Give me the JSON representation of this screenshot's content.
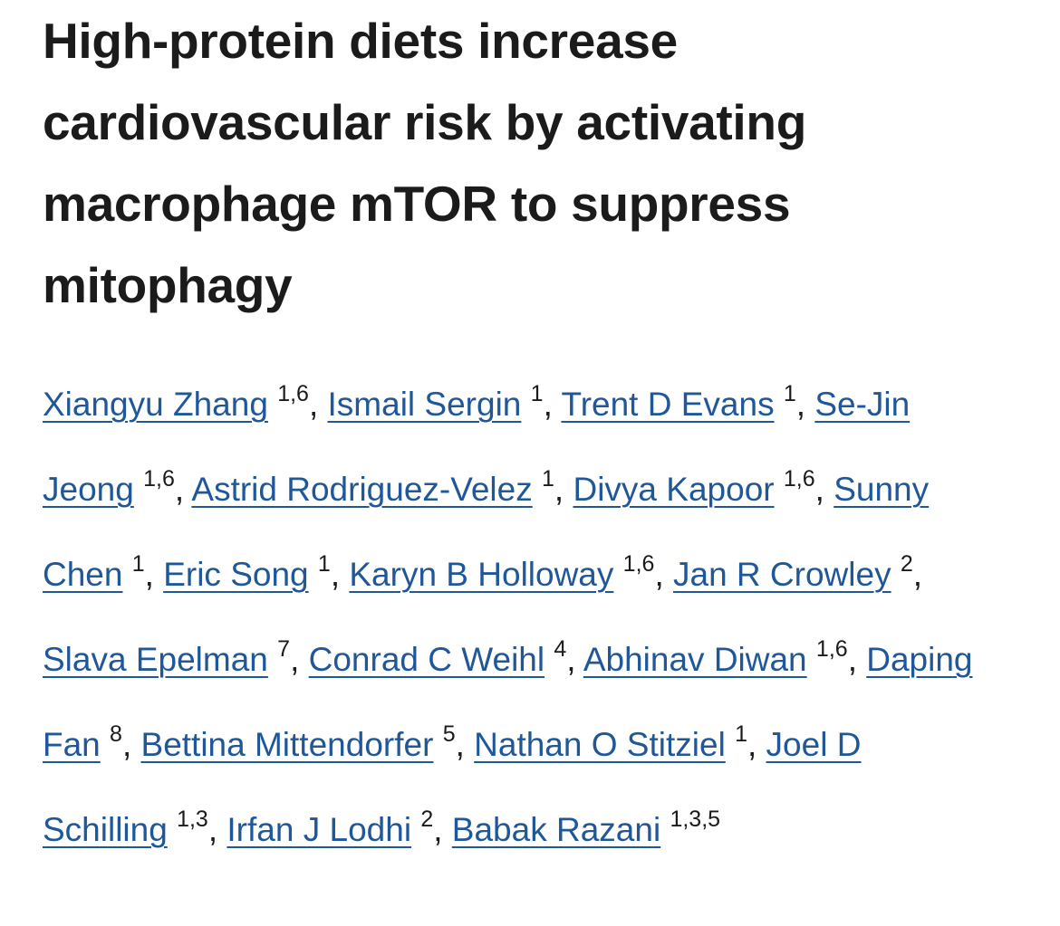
{
  "title": "High-protein diets increase cardiovascular risk by activating macrophage mTOR to suppress mitophagy",
  "separator": ",",
  "authors": [
    {
      "name": "Xiangyu Zhang",
      "affiliations": "1,6"
    },
    {
      "name": "Ismail Sergin",
      "affiliations": "1"
    },
    {
      "name": "Trent D Evans",
      "affiliations": "1"
    },
    {
      "name": "Se-Jin Jeong",
      "affiliations": "1,6"
    },
    {
      "name": "Astrid Rodriguez-Velez",
      "affiliations": "1"
    },
    {
      "name": "Divya Kapoor",
      "affiliations": "1,6"
    },
    {
      "name": "Sunny Chen",
      "affiliations": "1"
    },
    {
      "name": "Eric Song",
      "affiliations": "1"
    },
    {
      "name": "Karyn B Holloway",
      "affiliations": "1,6"
    },
    {
      "name": "Jan R Crowley",
      "affiliations": "2"
    },
    {
      "name": "Slava Epelman",
      "affiliations": "7"
    },
    {
      "name": "Conrad C Weihl",
      "affiliations": "4"
    },
    {
      "name": "Abhinav Diwan",
      "affiliations": "1,6"
    },
    {
      "name": "Daping Fan",
      "affiliations": "8"
    },
    {
      "name": "Bettina Mittendorfer",
      "affiliations": "5"
    },
    {
      "name": "Nathan O Stitziel",
      "affiliations": "1"
    },
    {
      "name": "Joel D Schilling",
      "affiliations": "1,3"
    },
    {
      "name": "Irfan J Lodhi",
      "affiliations": "2"
    },
    {
      "name": "Babak Razani",
      "affiliations": "1,3,5"
    }
  ]
}
